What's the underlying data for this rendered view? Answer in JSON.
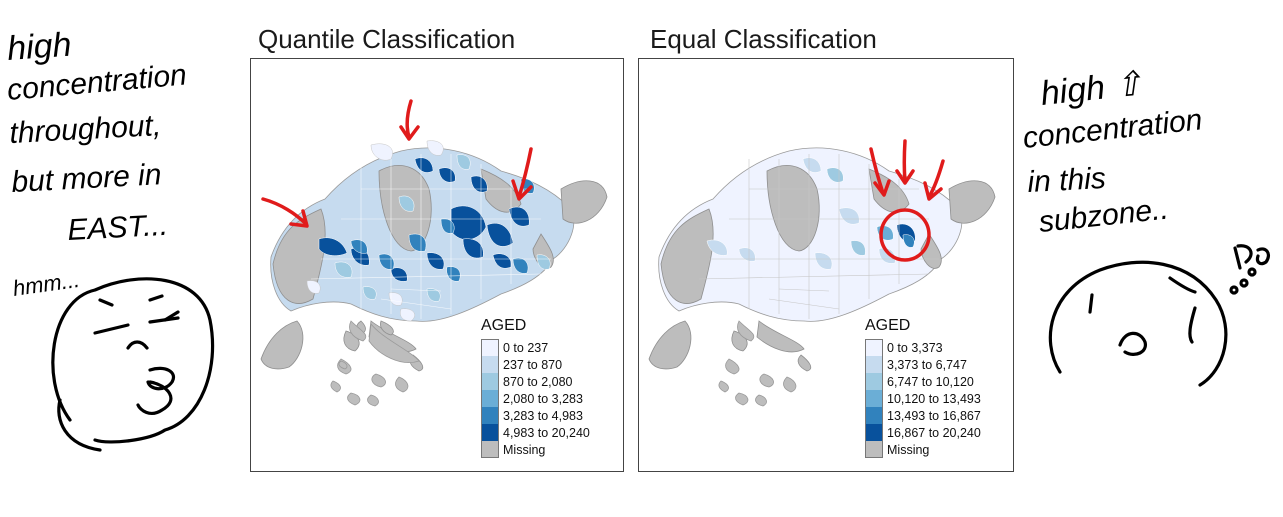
{
  "maps": [
    {
      "id": "quantile",
      "title": "Quantile Classification",
      "legend_title": "AGED",
      "legend": [
        {
          "label": "0 to 237",
          "color": "#eff3ff"
        },
        {
          "label": "237 to 870",
          "color": "#c6dbef"
        },
        {
          "label": "870 to 2,080",
          "color": "#9ecae1"
        },
        {
          "label": "2,080 to 3,283",
          "color": "#6baed6"
        },
        {
          "label": "3,283 to 4,983",
          "color": "#3182bd"
        },
        {
          "label": "4,983 to 20,240",
          "color": "#08519c"
        },
        {
          "label": "Missing",
          "color": "#bdbdbd"
        }
      ]
    },
    {
      "id": "equal",
      "title": "Equal Classification",
      "legend_title": "AGED",
      "legend": [
        {
          "label": "0 to 3,373",
          "color": "#eff3ff"
        },
        {
          "label": "3,373 to 6,747",
          "color": "#c6dbef"
        },
        {
          "label": "6,747 to 10,120",
          "color": "#9ecae1"
        },
        {
          "label": "10,120 to 13,493",
          "color": "#6baed6"
        },
        {
          "label": "13,493 to 16,867",
          "color": "#3182bd"
        },
        {
          "label": "16,867 to 20,240",
          "color": "#08519c"
        },
        {
          "label": "Missing",
          "color": "#bdbdbd"
        }
      ]
    }
  ],
  "annotations": {
    "left_lines": [
      "high",
      "concentration",
      "throughout,",
      "but more in",
      "EAST...",
      "hmm..."
    ],
    "right_lines": [
      "high ⇧",
      "concentration",
      "in this",
      "subzone.."
    ],
    "ink_color": "#000000",
    "marker_color": "#e01b1b"
  }
}
